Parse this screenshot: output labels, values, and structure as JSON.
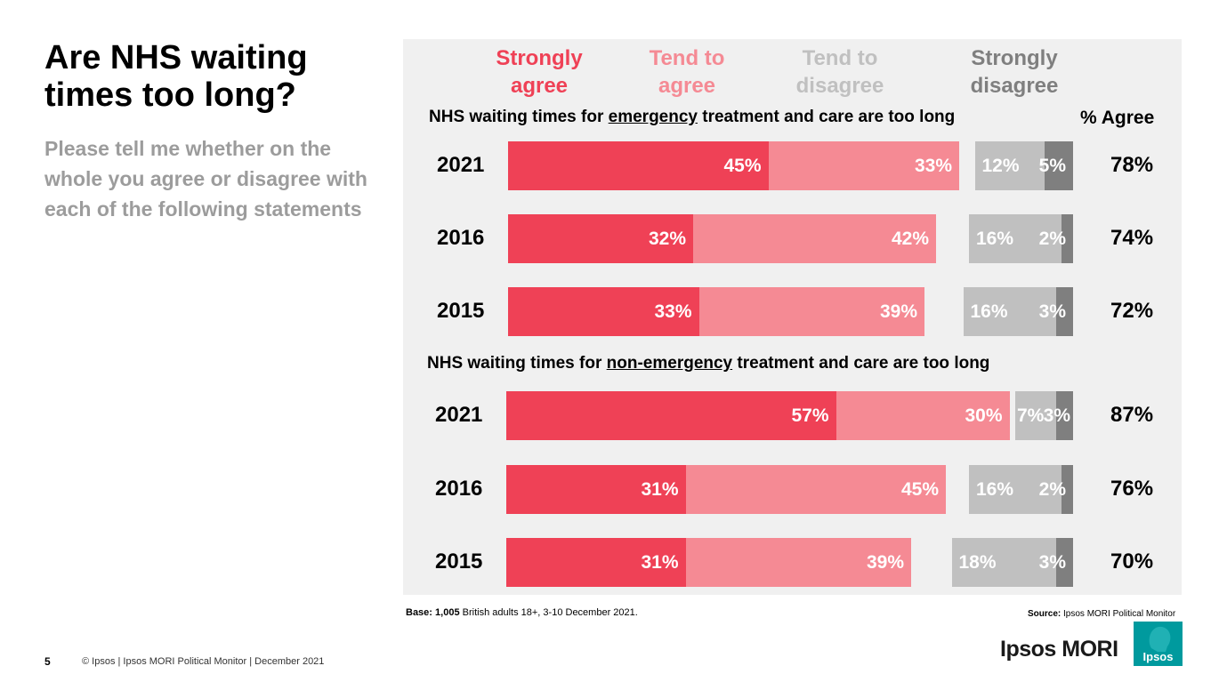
{
  "page": {
    "title": "Are NHS waiting times too long?",
    "question": "Please tell me whether on the whole you agree or disagree with each of the following statements",
    "base_prefix": "Base:",
    "base_count": "1,005",
    "base_text": "British adults 18+, 3-10 December 2021.",
    "source_prefix": "Source:",
    "source_text": "Ipsos MORI Political Monitor",
    "page_number": "5",
    "copyright": "© Ipsos | Ipsos MORI Political Monitor | December 2021",
    "brand": "Ipsos MORI",
    "brand_logo_text": "Ipsos"
  },
  "chart_data": {
    "type": "bar",
    "subtype": "stacked-horizontal",
    "legend": [
      {
        "line1": "Strongly",
        "line2": "agree",
        "color": "#ef4156"
      },
      {
        "line1": "Tend to",
        "line2": "agree",
        "color": "#f58a94"
      },
      {
        "line1": "Tend to",
        "line2": "disagree",
        "color": "#c0c0c0"
      },
      {
        "line1": "Strongly",
        "line2": "disagree",
        "color": "#7f7f7f"
      }
    ],
    "agree_header": "% Agree",
    "sections": [
      {
        "prefix": "NHS waiting times for ",
        "keyword": "emergency",
        "suffix": " treatment and care are too long",
        "rows": [
          {
            "year": "2021",
            "values": [
              45,
              33,
              12,
              5
            ],
            "labels": [
              "45%",
              "33%",
              "12%",
              "5%"
            ],
            "agree": "78%"
          },
          {
            "year": "2016",
            "values": [
              32,
              42,
              16,
              2
            ],
            "labels": [
              "32%",
              "42%",
              "16%",
              "2%"
            ],
            "agree": "74%"
          },
          {
            "year": "2015",
            "values": [
              33,
              39,
              16,
              3
            ],
            "labels": [
              "33%",
              "39%",
              "16%",
              "3%"
            ],
            "agree": "72%"
          }
        ]
      },
      {
        "prefix": "NHS waiting times for ",
        "keyword": "non-emergency",
        "suffix": " treatment and care are too long",
        "rows": [
          {
            "year": "2021",
            "values": [
              57,
              30,
              7,
              3
            ],
            "labels": [
              "57%",
              "30%",
              "7%",
              "3%"
            ],
            "agree": "87%"
          },
          {
            "year": "2016",
            "values": [
              31,
              45,
              16,
              2
            ],
            "labels": [
              "31%",
              "45%",
              "16%",
              "2%"
            ],
            "agree": "76%"
          },
          {
            "year": "2015",
            "values": [
              31,
              39,
              18,
              3
            ],
            "labels": [
              "31%",
              "39%",
              "18%",
              "3%"
            ],
            "agree": "70%"
          }
        ]
      }
    ]
  }
}
